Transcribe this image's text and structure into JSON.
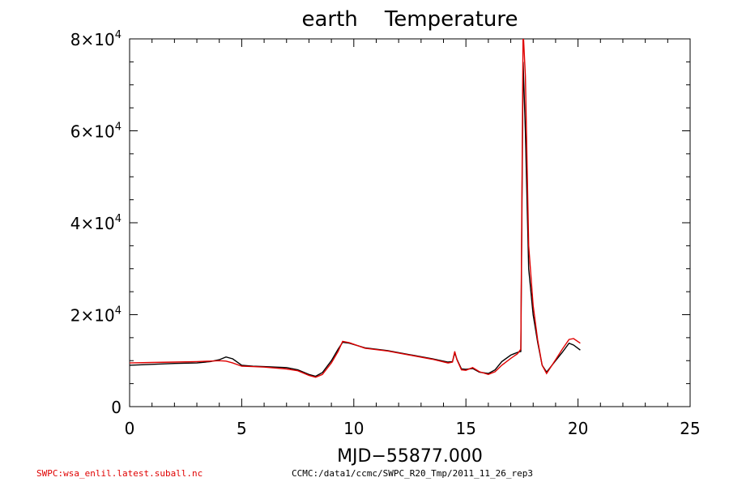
{
  "chart_data": {
    "type": "line",
    "title": "earth    Temperature",
    "xlabel": "MJD−55877.000",
    "ylabel": "",
    "xlim": [
      0,
      25
    ],
    "ylim": [
      0,
      80000
    ],
    "xticks": [
      0,
      5,
      10,
      15,
      20,
      25
    ],
    "xtick_labels": [
      "0",
      "5",
      "10",
      "15",
      "20",
      "25"
    ],
    "yticks": [
      0,
      20000,
      40000,
      60000,
      80000
    ],
    "ytick_labels": [
      {
        "mant": "0",
        "exp": ""
      },
      {
        "mant": "2×10",
        "exp": "4"
      },
      {
        "mant": "4×10",
        "exp": "4"
      },
      {
        "mant": "6×10",
        "exp": "4"
      },
      {
        "mant": "8×10",
        "exp": "4"
      }
    ],
    "series": [
      {
        "color": "#000000",
        "x": [
          0,
          1,
          2,
          3,
          3.6,
          4,
          4.3,
          4.6,
          5,
          5.5,
          6,
          7,
          7.5,
          8,
          8.3,
          8.6,
          9,
          9.3,
          9.5,
          9.8,
          10.5,
          11.5,
          12.5,
          13.5,
          14.2,
          14.4,
          14.5,
          14.6,
          14.8,
          15,
          15.3,
          15.6,
          16,
          16.3,
          16.6,
          17,
          17.3,
          17.45,
          17.55,
          17.65,
          17.8,
          18,
          18.2,
          18.4,
          18.6,
          19,
          19.3,
          19.6,
          19.8,
          20.1
        ],
        "y": [
          9000,
          9200,
          9400,
          9500,
          9800,
          10200,
          10800,
          10400,
          9000,
          8800,
          8700,
          8500,
          8000,
          7000,
          6600,
          7400,
          10000,
          12500,
          14000,
          13800,
          12800,
          12200,
          11300,
          10400,
          9700,
          9800,
          11700,
          10300,
          8200,
          8100,
          8300,
          7500,
          7200,
          8000,
          9800,
          11200,
          11800,
          12000,
          75000,
          60000,
          30000,
          20000,
          14000,
          9000,
          7500,
          10000,
          11800,
          13800,
          13400,
          12300
        ]
      },
      {
        "color": "#e00000",
        "x": [
          0,
          1,
          2,
          3,
          3.6,
          4,
          4.3,
          4.6,
          5,
          5.5,
          6,
          7,
          7.5,
          8,
          8.3,
          8.6,
          9,
          9.3,
          9.5,
          9.8,
          10.5,
          11.5,
          12.5,
          13.5,
          14.2,
          14.4,
          14.5,
          14.6,
          14.8,
          15,
          15.3,
          15.6,
          16,
          16.3,
          16.6,
          17,
          17.3,
          17.45,
          17.55,
          17.65,
          17.8,
          18,
          18.2,
          18.4,
          18.6,
          19,
          19.3,
          19.6,
          19.8,
          20.1
        ],
        "y": [
          9500,
          9600,
          9700,
          9800,
          9900,
          10000,
          9900,
          9500,
          8800,
          8700,
          8600,
          8200,
          7800,
          6800,
          6400,
          7000,
          9500,
          12000,
          14200,
          13900,
          12700,
          12100,
          11200,
          10300,
          9500,
          9700,
          12000,
          10200,
          8000,
          7900,
          8500,
          7600,
          7000,
          7600,
          9000,
          10500,
          11500,
          12500,
          82000,
          72000,
          35000,
          22000,
          14500,
          9000,
          7200,
          10200,
          12500,
          14600,
          14800,
          13800
        ]
      }
    ]
  },
  "footer": {
    "left": "SWPC:wsa_enlil.latest.suball.nc",
    "right": "CCMC:/data1/ccmc/SWPC_R20_Tmp/2011_11_26_rep3"
  }
}
